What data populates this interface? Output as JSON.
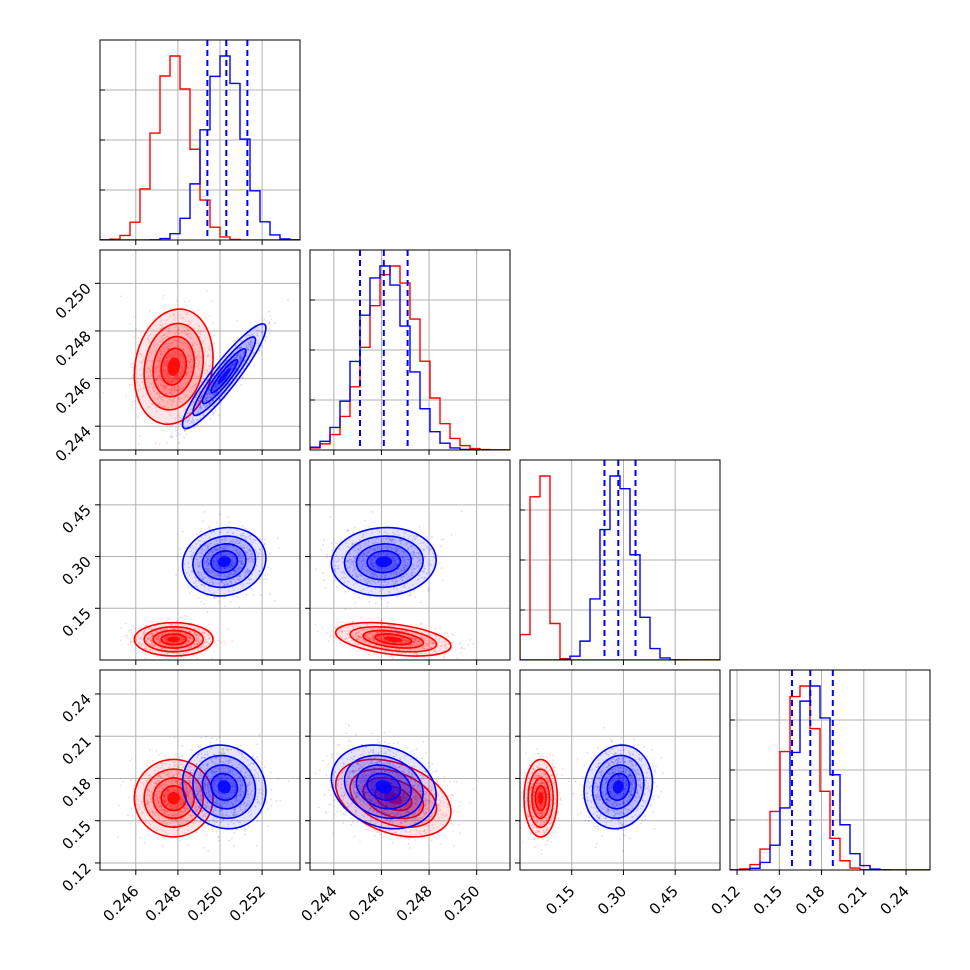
{
  "chart_data": {
    "type": "corner",
    "title": "",
    "grid": true,
    "parameters": [
      {
        "range": [
          0.2443,
          0.2538
        ],
        "ticks": [
          0.246,
          0.248,
          0.25,
          0.252
        ],
        "tick_labels": [
          "0.246",
          "0.248",
          "0.250",
          "0.252"
        ],
        "hist_ylim": 330
      },
      {
        "range": [
          0.243,
          0.2514
        ],
        "ticks": [
          0.244,
          0.246,
          0.248,
          0.25
        ],
        "tick_labels": [
          "0.244",
          "0.246",
          "0.248",
          "0.250"
        ],
        "hist_ylim": 250
      },
      {
        "range": [
          0.0,
          0.58
        ],
        "ticks": [
          0.15,
          0.3,
          0.45
        ],
        "tick_labels": [
          "0.15",
          "0.30",
          "0.45"
        ],
        "hist_ylim": 1250
      },
      {
        "range": [
          0.115,
          0.257
        ],
        "ticks": [
          0.12,
          0.15,
          0.18,
          0.21,
          0.24
        ],
        "tick_labels": [
          "0.12",
          "0.15",
          "0.18",
          "0.21",
          "0.24"
        ],
        "hist_ylim": 240
      }
    ],
    "series": [
      {
        "name": "",
        "color": "#ff0000",
        "means": [
          0.2478,
          0.2465,
          0.06,
          0.166
        ],
        "sigmas": [
          0.00085,
          0.0011,
          0.022,
          0.0125
        ],
        "correlations": {
          "1-0": 0.15,
          "2-0": 0.0,
          "2-1": -0.4,
          "3-0": 0.0,
          "3-1": -0.35,
          "3-2": 0.0
        }
      },
      {
        "name": "",
        "color": "#0000ff",
        "means": [
          0.2502,
          0.2461,
          0.285,
          0.174
        ],
        "sigmas": [
          0.0009,
          0.001,
          0.045,
          0.0135
        ],
        "quantile_lines": [
          [
            0.2494,
            0.2503,
            0.2513
          ],
          [
            0.2451,
            0.2461,
            0.2471
          ],
          [
            0.245,
            0.285,
            0.335
          ],
          [
            0.159,
            0.172,
            0.188
          ]
        ],
        "correlations": {
          "1-0": 0.92,
          "2-0": 0.1,
          "2-1": 0.05,
          "3-0": -0.1,
          "3-1": -0.2,
          "3-2": 0.1
        }
      }
    ]
  }
}
